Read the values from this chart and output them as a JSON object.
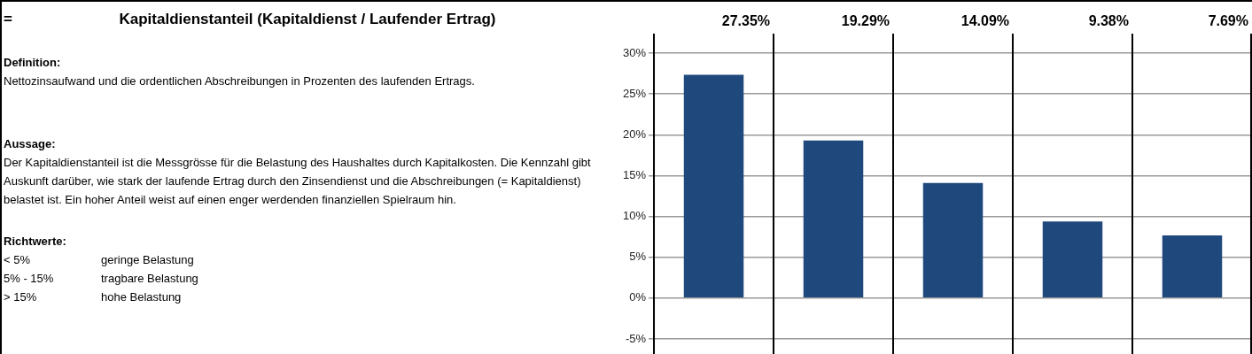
{
  "chart_data": [
    {
      "type": "other",
      "title": "Kapitaldienstanteil (Kapitaldienst / Laufender Ertrag)",
      "annotations": [
        "=",
        "Definition:",
        "Nettozinsaufwand und die ordentlichen Abschreibungen in Prozenten des laufenden Ertrags.",
        "Aussage:",
        "Der Kapitaldienstanteil ist die Messgrösse für die Belastung des Haushaltes durch Kapitalkosten. Die Kennzahl gibt Auskunft darüber, wie stark der laufende Ertrag durch den Zinsendienst und die Abschreibungen (= Kapitaldienst) belastet ist. Ein hoher Anteil weist auf einen enger werdenden finanziellen Spielraum hin.",
        "Richtwerte:",
        "< 5%",
        "geringe Belastung",
        "5% - 15%",
        "tragbare Belastung",
        "> 15%",
        "hohe Belastung"
      ]
    },
    {
      "type": "bar",
      "categories": [
        null,
        null,
        null,
        null,
        null
      ],
      "values": [
        27.35,
        19.29,
        14.09,
        9.38,
        7.69
      ],
      "color": "#1f497d",
      "value_labels": [
        "27.35%",
        "19.29%",
        "14.09%",
        "9.38%",
        "7.69%"
      ],
      "ylim": [
        -5,
        30
      ],
      "yticks": [
        {
          "value": -5,
          "label": "-5%"
        },
        {
          "value": 0,
          "label": "0%"
        },
        {
          "value": 5,
          "label": "5%"
        },
        {
          "value": 10,
          "label": "10%"
        },
        {
          "value": 15,
          "label": "15%"
        },
        {
          "value": 20,
          "label": "20%"
        },
        {
          "value": 25,
          "label": "25%"
        },
        {
          "value": 30,
          "label": "30%"
        }
      ],
      "grid": "y"
    }
  ]
}
